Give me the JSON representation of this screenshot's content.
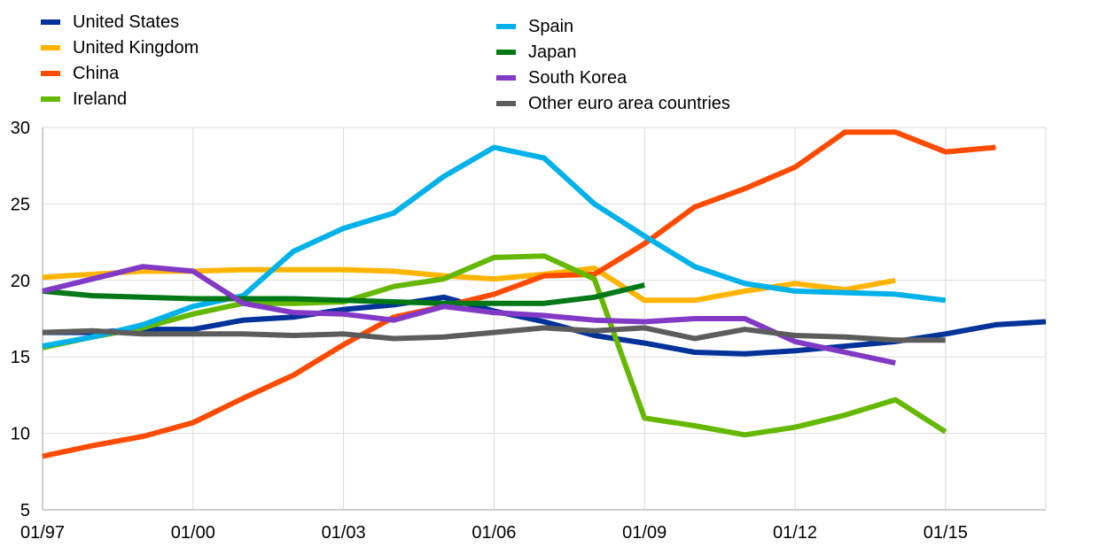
{
  "chart_data": {
    "type": "line",
    "x_tick_labels": [
      "01/97",
      "01/00",
      "01/03",
      "01/06",
      "01/09",
      "01/12",
      "01/15"
    ],
    "x_tick_years": [
      1997,
      2000,
      2003,
      2006,
      2009,
      2012,
      2015
    ],
    "xlim": [
      1997,
      2017
    ],
    "ylim": [
      5,
      30
    ],
    "y_ticks": [
      5,
      10,
      15,
      20,
      25,
      30
    ],
    "grid": true,
    "legend_position": "top",
    "series": [
      {
        "name": "United States",
        "color": "#003299",
        "x": [
          1997,
          1998,
          1999,
          2000,
          2001,
          2002,
          2003,
          2004,
          2005,
          2006,
          2007,
          2008,
          2009,
          2010,
          2011,
          2012,
          2013,
          2014,
          2015,
          2016,
          2017
        ],
        "y": [
          16.6,
          16.6,
          16.8,
          16.8,
          17.4,
          17.6,
          18.1,
          18.4,
          18.9,
          18.0,
          17.3,
          16.4,
          15.9,
          15.3,
          15.2,
          15.4,
          15.7,
          16.0,
          16.5,
          17.1,
          17.3
        ]
      },
      {
        "name": "United Kingdom",
        "color": "#FFB400",
        "x": [
          1997,
          1998,
          1999,
          2000,
          2001,
          2002,
          2003,
          2004,
          2005,
          2006,
          2007,
          2008,
          2009,
          2010,
          2011,
          2012,
          2013,
          2014
        ],
        "y": [
          20.2,
          20.4,
          20.6,
          20.6,
          20.7,
          20.7,
          20.7,
          20.6,
          20.3,
          20.1,
          20.4,
          20.8,
          18.7,
          18.7,
          19.3,
          19.8,
          19.4,
          20.0
        ]
      },
      {
        "name": "China",
        "color": "#FF4B00",
        "x": [
          1997,
          1998,
          1999,
          2000,
          2001,
          2002,
          2003,
          2004,
          2005,
          2006,
          2007,
          2008,
          2009,
          2010,
          2011,
          2012,
          2013,
          2014,
          2015,
          2016
        ],
        "y": [
          8.5,
          9.2,
          9.8,
          10.7,
          12.3,
          13.8,
          15.8,
          17.6,
          18.3,
          19.1,
          20.3,
          20.4,
          22.4,
          24.8,
          26.0,
          27.4,
          29.7,
          29.7,
          28.4,
          28.7
        ]
      },
      {
        "name": "Ireland",
        "color": "#65B800",
        "x": [
          1997,
          1998,
          1999,
          2000,
          2001,
          2002,
          2003,
          2004,
          2005,
          2006,
          2007,
          2008,
          2009,
          2010,
          2011,
          2012,
          2013,
          2014,
          2015
        ],
        "y": [
          15.6,
          16.3,
          16.9,
          17.8,
          18.5,
          18.5,
          18.6,
          19.6,
          20.1,
          21.5,
          21.6,
          20.1,
          11.0,
          10.5,
          9.9,
          10.4,
          11.2,
          12.2,
          10.1
        ]
      },
      {
        "name": "Spain",
        "color": "#00B1EA",
        "x": [
          1997,
          1998,
          1999,
          2000,
          2001,
          2002,
          2003,
          2004,
          2005,
          2006,
          2007,
          2008,
          2009,
          2010,
          2011,
          2012,
          2013,
          2014,
          2015
        ],
        "y": [
          15.7,
          16.3,
          17.1,
          18.3,
          19.0,
          21.9,
          23.4,
          24.4,
          26.8,
          28.7,
          28.0,
          25.0,
          22.9,
          20.9,
          19.8,
          19.3,
          19.2,
          19.1,
          18.7
        ]
      },
      {
        "name": "Japan",
        "color": "#007816",
        "x": [
          1997,
          1998,
          1999,
          2000,
          2001,
          2002,
          2003,
          2004,
          2005,
          2006,
          2007,
          2008,
          2009
        ],
        "y": [
          19.3,
          19.0,
          18.9,
          18.8,
          18.8,
          18.8,
          18.7,
          18.6,
          18.5,
          18.5,
          18.5,
          18.9,
          19.7
        ]
      },
      {
        "name": "South Korea",
        "color": "#8139C6",
        "x": [
          1997,
          1998,
          1999,
          2000,
          2001,
          2002,
          2003,
          2004,
          2005,
          2006,
          2007,
          2008,
          2009,
          2010,
          2011,
          2012,
          2013,
          2014
        ],
        "y": [
          19.3,
          20.1,
          20.9,
          20.6,
          18.5,
          17.9,
          17.8,
          17.4,
          18.3,
          17.9,
          17.7,
          17.4,
          17.3,
          17.5,
          17.5,
          16.0,
          15.3,
          14.6
        ]
      },
      {
        "name": "Other euro area countries",
        "color": "#5C5C5C",
        "x": [
          1997,
          1998,
          1999,
          2000,
          2001,
          2002,
          2003,
          2004,
          2005,
          2006,
          2007,
          2008,
          2009,
          2010,
          2011,
          2012,
          2013,
          2014,
          2015
        ],
        "y": [
          16.6,
          16.7,
          16.5,
          16.5,
          16.5,
          16.4,
          16.5,
          16.2,
          16.3,
          16.6,
          16.9,
          16.7,
          16.9,
          16.2,
          16.8,
          16.4,
          16.3,
          16.1,
          16.1
        ]
      }
    ]
  }
}
